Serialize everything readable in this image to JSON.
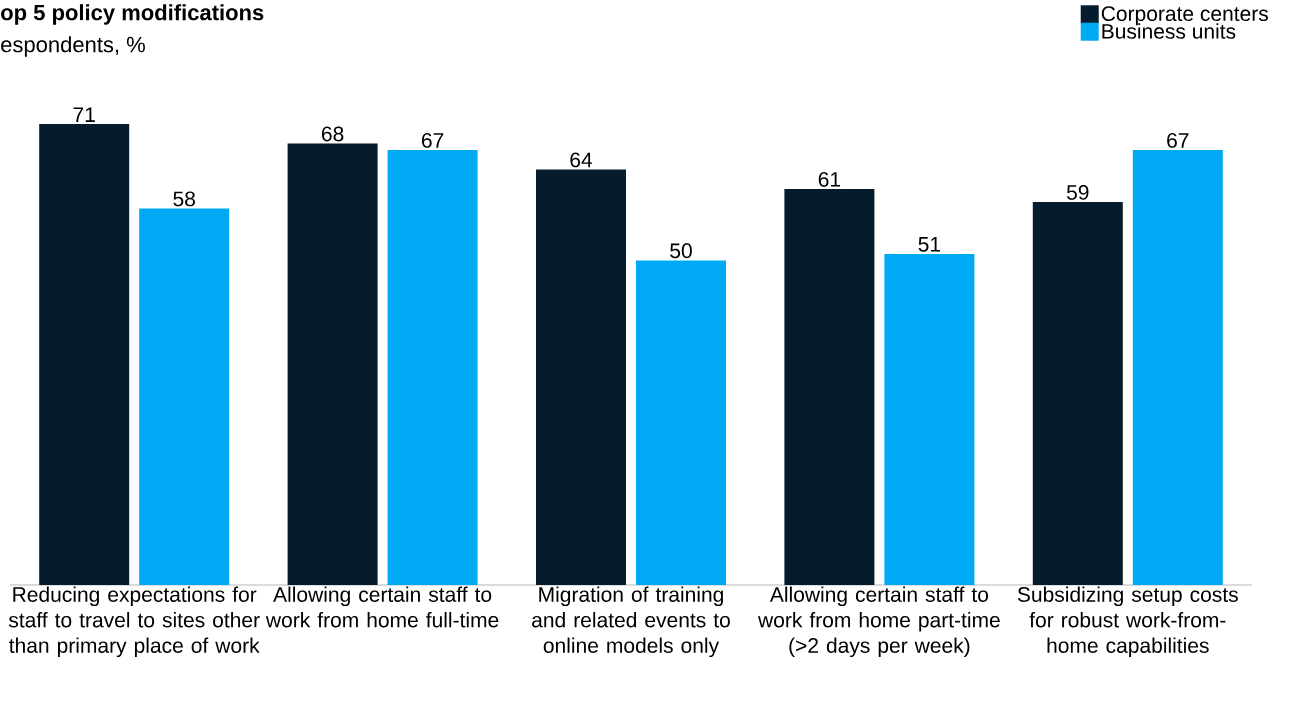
{
  "chart_data": {
    "type": "bar",
    "title": "op 5 policy modifications",
    "subtitle": "espondents, %",
    "categories": [
      "Reducing expectations for staff to travel to sites other than primary place of work",
      "Allowing certain staff to work from home full-time",
      "Migration of training and related events to online models only",
      "Allowing certain staff to work from home part-time (>2 days per week)",
      "Subsidizing setup costs for robust work-from-home capabilities"
    ],
    "series": [
      {
        "name": "Corporate centers",
        "color": "#051c2c",
        "values": [
          71,
          68,
          64,
          61,
          59
        ]
      },
      {
        "name": "Business units",
        "color": "#00a9f4",
        "values": [
          58,
          67,
          50,
          51,
          67
        ]
      }
    ],
    "data_labels": true,
    "legend": "top right"
  }
}
